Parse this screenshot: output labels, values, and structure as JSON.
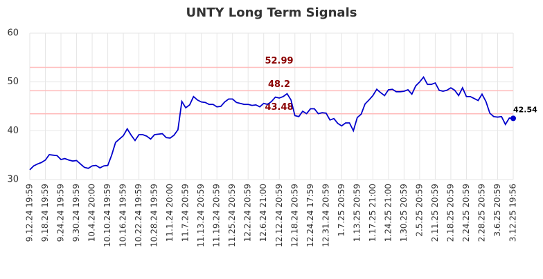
{
  "chart_data": {
    "type": "line",
    "title": "UNTY Long Term Signals",
    "categories": [
      "9.12.24 19:59",
      null,
      null,
      null,
      "9.18.24 19:59",
      null,
      null,
      null,
      "9.24.24 19:59",
      null,
      null,
      null,
      "9.30.24 19:59",
      null,
      null,
      null,
      "10.4.24 20:00",
      null,
      null,
      null,
      "10.10.24 19:59",
      null,
      null,
      null,
      "10.16.24 19:59",
      null,
      null,
      null,
      "10.22.24 19:59",
      null,
      null,
      null,
      "10.28.24 19:59",
      null,
      null,
      null,
      "11.1.24 20:00",
      null,
      null,
      null,
      "11.7.24 20:59",
      null,
      null,
      null,
      "11.13.24 20:59",
      null,
      null,
      null,
      "11.19.24 20:59",
      null,
      null,
      null,
      "11.25.24 20:59",
      null,
      null,
      null,
      "12.2.24 20:59",
      null,
      null,
      null,
      "12.6.24 21:00",
      null,
      null,
      null,
      "12.12.24 20:59",
      null,
      null,
      null,
      "12.18.24 20:59",
      null,
      null,
      null,
      "12.24.24 17:59",
      null,
      null,
      null,
      "12.31.24 20:59",
      null,
      null,
      null,
      "1.7.25 20:59",
      null,
      null,
      null,
      "1.13.25 20:59",
      null,
      null,
      null,
      "1.17.25 21:00",
      null,
      null,
      null,
      "1.24.25 21:00",
      null,
      null,
      null,
      "1.30.25 20:59",
      null,
      null,
      null,
      "2.5.25 20:59",
      null,
      null,
      null,
      "2.11.25 20:59",
      null,
      null,
      null,
      "2.18.25 20:59",
      null,
      null,
      null,
      "2.24.25 20:59",
      null,
      null,
      null,
      "2.28.25 20:59",
      null,
      null,
      null,
      "3.6.25 20:59",
      null,
      null,
      null,
      "3.12.25 19:56"
    ],
    "series": [
      {
        "color": "#0000cc",
        "values": [
          32.0,
          32.8,
          33.2,
          33.5,
          34.0,
          35.1,
          35.0,
          34.9,
          34.1,
          34.3,
          34.0,
          33.8,
          33.9,
          33.2,
          32.5,
          32.3,
          32.8,
          32.9,
          32.4,
          32.8,
          32.9,
          35.0,
          37.6,
          38.3,
          39.0,
          40.4,
          39.1,
          38.0,
          39.2,
          39.2,
          38.9,
          38.3,
          39.2,
          39.3,
          39.4,
          38.6,
          38.5,
          39.1,
          40.2,
          46.0,
          44.7,
          45.3,
          47.0,
          46.3,
          45.9,
          45.8,
          45.4,
          45.4,
          44.9,
          45.0,
          45.9,
          46.5,
          46.5,
          45.8,
          45.6,
          45.4,
          45.4,
          45.2,
          45.3,
          44.9,
          45.6,
          45.4,
          46.0,
          46.9,
          46.7,
          47.0,
          47.6,
          46.3,
          43.1,
          42.9,
          44.0,
          43.5,
          44.5,
          44.5,
          43.5,
          43.7,
          43.6,
          42.2,
          42.5,
          41.5,
          41.0,
          41.6,
          41.6,
          40.0,
          42.7,
          43.4,
          45.5,
          46.3,
          47.2,
          48.5,
          47.8,
          47.2,
          48.4,
          48.5,
          48.0,
          48.0,
          48.1,
          48.4,
          47.5,
          49.2,
          50.0,
          51.0,
          49.5,
          49.5,
          49.8,
          48.3,
          48.1,
          48.3,
          48.8,
          48.3,
          47.2,
          48.8,
          47.0,
          47.0,
          46.6,
          46.2,
          47.5,
          46.0,
          43.6,
          42.9,
          42.8,
          42.9,
          41.3,
          42.6,
          42.54
        ]
      }
    ],
    "levels": [
      52.99,
      48.2,
      43.48
    ],
    "level_color": "#ffbbbb",
    "level_label_color": "#8b0000",
    "ylim": [
      30,
      60
    ],
    "yticks": [
      30,
      40,
      50,
      60
    ],
    "grid": true
  }
}
